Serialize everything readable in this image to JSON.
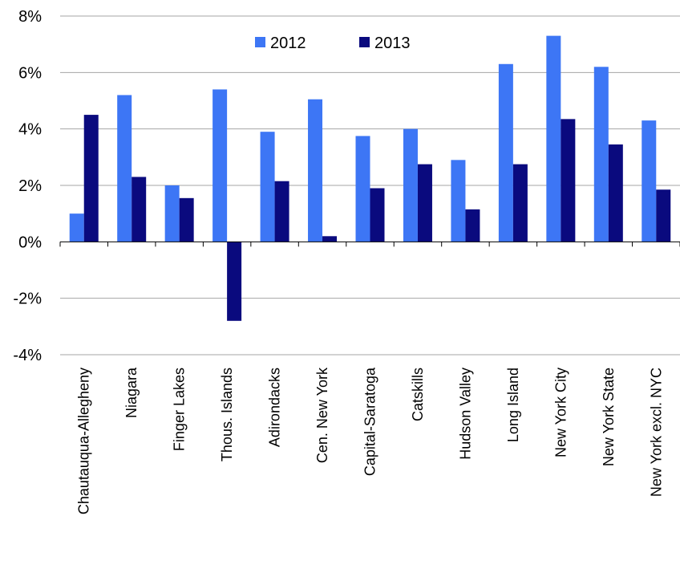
{
  "chart_data": {
    "type": "bar",
    "title": "",
    "xlabel": "",
    "ylabel": "",
    "ylim": [
      -4,
      8
    ],
    "y_ticks": [
      -4,
      -2,
      0,
      2,
      4,
      6,
      8
    ],
    "y_tick_labels": [
      "-4%",
      "-2%",
      "0%",
      "2%",
      "4%",
      "6%",
      "8%"
    ],
    "grid": "horizontal",
    "legend_position": "top-center",
    "categories": [
      "Chautauqua-Allegheny",
      "Niagara",
      "Finger Lakes",
      "Thous. Islands",
      "Adirondacks",
      "Cen. New York",
      "Capital-Saratoga",
      "Catskills",
      "Hudson Valley",
      "Long Island",
      "New York City",
      "New York State",
      "New York excl. NYC"
    ],
    "series": [
      {
        "name": "2012",
        "color": "#3d76f5",
        "values": [
          1.0,
          5.2,
          2.0,
          5.4,
          3.9,
          5.05,
          3.75,
          4.0,
          2.9,
          6.3,
          7.3,
          6.2,
          4.3
        ]
      },
      {
        "name": "2013",
        "color": "#0a0a7e",
        "values": [
          4.5,
          2.3,
          1.55,
          -2.8,
          2.15,
          0.2,
          1.9,
          2.75,
          1.15,
          2.75,
          4.35,
          3.45,
          1.85
        ]
      }
    ]
  }
}
